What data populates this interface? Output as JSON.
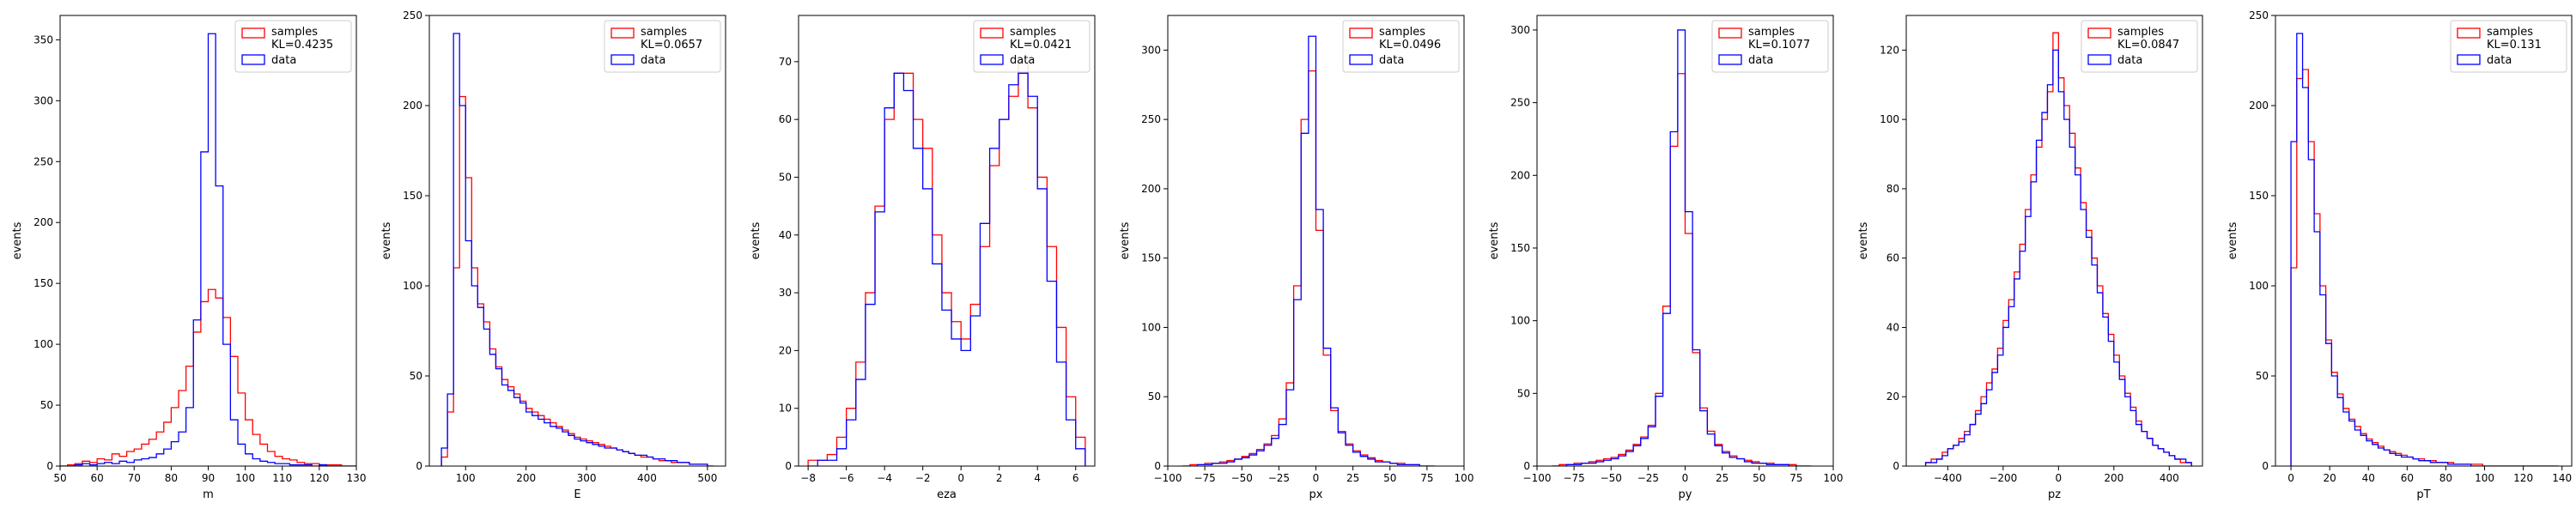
{
  "chart_data": [
    {
      "type": "histogram",
      "xlabel": "m",
      "ylabel": "events",
      "xlim": [
        50,
        130
      ],
      "ylim": [
        0,
        370
      ],
      "xticks": [
        50,
        60,
        70,
        80,
        90,
        100,
        110,
        120,
        130
      ],
      "yticks": [
        0,
        50,
        100,
        150,
        200,
        250,
        300,
        350
      ],
      "legend": "top-right",
      "bin_edges": [
        50,
        52,
        54,
        56,
        58,
        60,
        62,
        64,
        66,
        68,
        70,
        72,
        74,
        76,
        78,
        80,
        82,
        84,
        86,
        88,
        90,
        92,
        94,
        96,
        98,
        100,
        102,
        104,
        106,
        108,
        110,
        112,
        114,
        116,
        118,
        120,
        122,
        124,
        126,
        128,
        130
      ],
      "series": [
        {
          "name": "samples",
          "label": "samples\nKL=0.4235",
          "color": "#ff0000",
          "values": [
            0,
            1,
            2,
            4,
            3,
            6,
            5,
            10,
            8,
            12,
            14,
            18,
            22,
            28,
            36,
            48,
            62,
            82,
            110,
            135,
            145,
            138,
            122,
            90,
            60,
            38,
            26,
            18,
            12,
            8,
            6,
            5,
            3,
            2,
            2,
            1,
            1,
            1,
            0,
            0
          ]
        },
        {
          "name": "data",
          "label": "data",
          "color": "#0000ff",
          "values": [
            0,
            0,
            1,
            2,
            1,
            2,
            3,
            2,
            4,
            3,
            5,
            6,
            7,
            10,
            14,
            20,
            28,
            48,
            120,
            258,
            355,
            230,
            100,
            38,
            18,
            10,
            6,
            4,
            3,
            2,
            2,
            1,
            1,
            1,
            0,
            1,
            0,
            0,
            0,
            0
          ]
        }
      ]
    },
    {
      "type": "histogram",
      "xlabel": "E",
      "ylabel": "events",
      "xlim": [
        40,
        530
      ],
      "ylim": [
        0,
        250
      ],
      "xticks": [
        100,
        200,
        300,
        400,
        500
      ],
      "yticks": [
        0,
        50,
        100,
        150,
        200,
        250
      ],
      "legend": "top-right",
      "bin_edges": [
        60,
        70,
        80,
        90,
        100,
        110,
        120,
        130,
        140,
        150,
        160,
        170,
        180,
        190,
        200,
        210,
        220,
        230,
        240,
        250,
        260,
        270,
        280,
        290,
        300,
        310,
        320,
        330,
        340,
        350,
        360,
        370,
        380,
        390,
        400,
        410,
        420,
        430,
        440,
        450,
        460,
        470,
        480,
        490,
        500,
        510
      ],
      "series": [
        {
          "name": "samples",
          "label": "samples\nKL=0.0657",
          "color": "#ff0000",
          "values": [
            5,
            30,
            110,
            205,
            160,
            110,
            90,
            80,
            65,
            55,
            48,
            44,
            40,
            36,
            32,
            30,
            28,
            26,
            24,
            22,
            20,
            18,
            16,
            15,
            14,
            13,
            12,
            11,
            10,
            9,
            8,
            7,
            6,
            5,
            5,
            4,
            3,
            3,
            2,
            2,
            2,
            1,
            1,
            1,
            0
          ]
        },
        {
          "name": "data",
          "label": "data",
          "color": "#0000ff",
          "values": [
            10,
            40,
            240,
            200,
            125,
            100,
            88,
            76,
            62,
            54,
            45,
            42,
            38,
            35,
            30,
            28,
            26,
            24,
            22,
            21,
            19,
            17,
            15,
            14,
            13,
            12,
            11,
            10,
            10,
            9,
            8,
            7,
            6,
            6,
            5,
            4,
            4,
            3,
            3,
            2,
            2,
            1,
            1,
            1,
            0
          ]
        }
      ]
    },
    {
      "type": "histogram",
      "xlabel": "eza",
      "ylabel": "events",
      "xlim": [
        -8.5,
        7.0
      ],
      "ylim": [
        0,
        78
      ],
      "xticks": [
        -8,
        -6,
        -4,
        -2,
        0,
        2,
        4,
        6
      ],
      "yticks": [
        0,
        10,
        20,
        30,
        40,
        50,
        60,
        70
      ],
      "legend": "top-right",
      "bin_edges": [
        -8,
        -7.5,
        -7,
        -6.5,
        -6,
        -5.5,
        -5,
        -4.5,
        -4,
        -3.5,
        -3,
        -2.5,
        -2,
        -1.5,
        -1,
        -0.5,
        0,
        0.5,
        1,
        1.5,
        2,
        2.5,
        3,
        3.5,
        4,
        4.5,
        5,
        5.5,
        6,
        6.5
      ],
      "series": [
        {
          "name": "samples",
          "label": "samples\nKL=0.0421",
          "color": "#ff0000",
          "values": [
            1,
            1,
            2,
            5,
            10,
            18,
            30,
            45,
            60,
            68,
            68,
            60,
            55,
            40,
            30,
            25,
            22,
            28,
            38,
            52,
            60,
            64,
            70,
            62,
            50,
            38,
            24,
            12,
            5
          ]
        },
        {
          "name": "data",
          "label": "data",
          "color": "#0000ff",
          "values": [
            0,
            1,
            1,
            3,
            8,
            15,
            28,
            44,
            62,
            68,
            65,
            55,
            48,
            35,
            27,
            22,
            20,
            26,
            42,
            55,
            60,
            66,
            68,
            64,
            48,
            32,
            18,
            8,
            3
          ]
        }
      ]
    },
    {
      "type": "histogram",
      "xlabel": "px",
      "ylabel": "events",
      "xlim": [
        -100,
        100
      ],
      "ylim": [
        0,
        325
      ],
      "xticks": [
        -100,
        -75,
        -50,
        -25,
        0,
        25,
        50,
        75,
        100
      ],
      "yticks": [
        0,
        50,
        100,
        150,
        200,
        250,
        300
      ],
      "legend": "top-right",
      "bin_edges": [
        -90,
        -85,
        -80,
        -75,
        -70,
        -65,
        -60,
        -55,
        -50,
        -45,
        -40,
        -35,
        -30,
        -25,
        -20,
        -15,
        -10,
        -5,
        0,
        5,
        10,
        15,
        20,
        25,
        30,
        35,
        40,
        45,
        50,
        55,
        60,
        65,
        70,
        75,
        80
      ],
      "series": [
        {
          "name": "samples",
          "label": "samples\nKL=0.0496",
          "color": "#ff0000",
          "values": [
            0,
            1,
            1,
            2,
            2,
            3,
            4,
            5,
            7,
            9,
            12,
            16,
            22,
            34,
            60,
            130,
            250,
            285,
            170,
            80,
            40,
            25,
            16,
            11,
            8,
            6,
            4,
            3,
            2,
            2,
            1,
            1,
            0,
            0
          ]
        },
        {
          "name": "data",
          "label": "data",
          "color": "#0000ff",
          "values": [
            0,
            0,
            1,
            1,
            2,
            2,
            3,
            5,
            6,
            8,
            11,
            15,
            20,
            30,
            55,
            120,
            240,
            310,
            185,
            85,
            42,
            24,
            15,
            10,
            7,
            5,
            3,
            3,
            2,
            1,
            1,
            1,
            0,
            0
          ]
        }
      ]
    },
    {
      "type": "histogram",
      "xlabel": "py",
      "ylabel": "events",
      "xlim": [
        -100,
        100
      ],
      "ylim": [
        0,
        310
      ],
      "xticks": [
        -100,
        -75,
        -50,
        -25,
        0,
        25,
        50,
        75,
        100
      ],
      "yticks": [
        0,
        50,
        100,
        150,
        200,
        250,
        300
      ],
      "legend": "top-right",
      "bin_edges": [
        -90,
        -85,
        -80,
        -75,
        -70,
        -65,
        -60,
        -55,
        -50,
        -45,
        -40,
        -35,
        -30,
        -25,
        -20,
        -15,
        -10,
        -5,
        0,
        5,
        10,
        15,
        20,
        25,
        30,
        35,
        40,
        45,
        50,
        55,
        60,
        65,
        70,
        75,
        80,
        85
      ],
      "series": [
        {
          "name": "samples",
          "label": "samples\nKL=0.1077",
          "color": "#ff0000",
          "values": [
            0,
            1,
            1,
            2,
            2,
            3,
            4,
            5,
            6,
            8,
            11,
            15,
            20,
            28,
            50,
            110,
            220,
            270,
            160,
            78,
            40,
            24,
            15,
            10,
            7,
            5,
            4,
            3,
            2,
            2,
            1,
            1,
            1,
            0,
            0
          ]
        },
        {
          "name": "data",
          "label": "data",
          "color": "#0000ff",
          "values": [
            0,
            0,
            1,
            1,
            2,
            2,
            3,
            4,
            5,
            7,
            10,
            14,
            19,
            27,
            48,
            105,
            230,
            300,
            175,
            80,
            38,
            22,
            14,
            9,
            6,
            5,
            3,
            2,
            2,
            1,
            1,
            1,
            0,
            0,
            0
          ]
        }
      ]
    },
    {
      "type": "histogram",
      "xlabel": "pz",
      "ylabel": "events",
      "xlim": [
        -550,
        520
      ],
      "ylim": [
        0,
        130
      ],
      "xticks": [
        -400,
        -200,
        0,
        200,
        400
      ],
      "yticks": [
        0,
        20,
        40,
        60,
        80,
        100,
        120
      ],
      "legend": "top-right",
      "bin_edges": [
        -480,
        -460,
        -440,
        -420,
        -400,
        -380,
        -360,
        -340,
        -320,
        -300,
        -280,
        -260,
        -240,
        -220,
        -200,
        -180,
        -160,
        -140,
        -120,
        -100,
        -80,
        -60,
        -40,
        -20,
        0,
        20,
        40,
        60,
        80,
        100,
        120,
        140,
        160,
        180,
        200,
        220,
        240,
        260,
        280,
        300,
        320,
        340,
        360,
        380,
        400,
        420,
        440,
        460,
        480
      ],
      "series": [
        {
          "name": "samples",
          "label": "samples\nKL=0.0847",
          "color": "#ff0000",
          "values": [
            1,
            2,
            2,
            4,
            5,
            6,
            8,
            10,
            12,
            16,
            20,
            24,
            28,
            34,
            42,
            48,
            56,
            64,
            74,
            84,
            92,
            100,
            108,
            125,
            112,
            104,
            96,
            86,
            76,
            68,
            60,
            52,
            44,
            38,
            32,
            26,
            21,
            17,
            13,
            10,
            8,
            6,
            5,
            4,
            3,
            2,
            1,
            1
          ]
        },
        {
          "name": "data",
          "label": "data",
          "color": "#0000ff",
          "values": [
            1,
            1,
            2,
            3,
            5,
            6,
            7,
            9,
            12,
            15,
            18,
            22,
            27,
            32,
            40,
            46,
            54,
            62,
            72,
            82,
            94,
            102,
            110,
            120,
            108,
            100,
            92,
            84,
            74,
            66,
            58,
            50,
            43,
            36,
            30,
            25,
            20,
            16,
            12,
            10,
            8,
            6,
            5,
            4,
            3,
            2,
            2,
            1
          ]
        }
      ]
    },
    {
      "type": "histogram",
      "xlabel": "pT",
      "ylabel": "events",
      "xlim": [
        -8,
        145
      ],
      "ylim": [
        0,
        250
      ],
      "xticks": [
        0,
        20,
        40,
        60,
        80,
        100,
        120,
        140
      ],
      "yticks": [
        0,
        50,
        100,
        150,
        200,
        250
      ],
      "legend": "top-right",
      "bin_edges": [
        0,
        3,
        6,
        9,
        12,
        15,
        18,
        21,
        24,
        27,
        30,
        33,
        36,
        39,
        42,
        45,
        48,
        51,
        54,
        57,
        60,
        63,
        66,
        69,
        72,
        75,
        78,
        81,
        84,
        87,
        90,
        93,
        96,
        99,
        102,
        105,
        108,
        111,
        114,
        117,
        120,
        123,
        126,
        129,
        132,
        135,
        138
      ],
      "series": [
        {
          "name": "samples",
          "label": "samples\nKL=0.131",
          "color": "#ff0000",
          "values": [
            110,
            215,
            220,
            180,
            140,
            100,
            70,
            52,
            40,
            32,
            26,
            22,
            18,
            15,
            13,
            11,
            9,
            8,
            7,
            6,
            5,
            4,
            4,
            3,
            3,
            2,
            2,
            2,
            1,
            1,
            1,
            1,
            1,
            0,
            0,
            0,
            0,
            0,
            0,
            0,
            0,
            0,
            0,
            0,
            0,
            0
          ]
        },
        {
          "name": "data",
          "label": "data",
          "color": "#0000ff",
          "values": [
            180,
            240,
            210,
            170,
            130,
            95,
            68,
            50,
            38,
            30,
            25,
            20,
            17,
            14,
            12,
            10,
            9,
            7,
            6,
            5,
            5,
            4,
            3,
            3,
            2,
            2,
            2,
            1,
            1,
            1,
            1,
            0,
            0,
            0,
            0,
            0,
            0,
            0,
            0,
            0,
            0,
            0,
            0,
            0,
            0,
            0
          ]
        }
      ]
    }
  ]
}
